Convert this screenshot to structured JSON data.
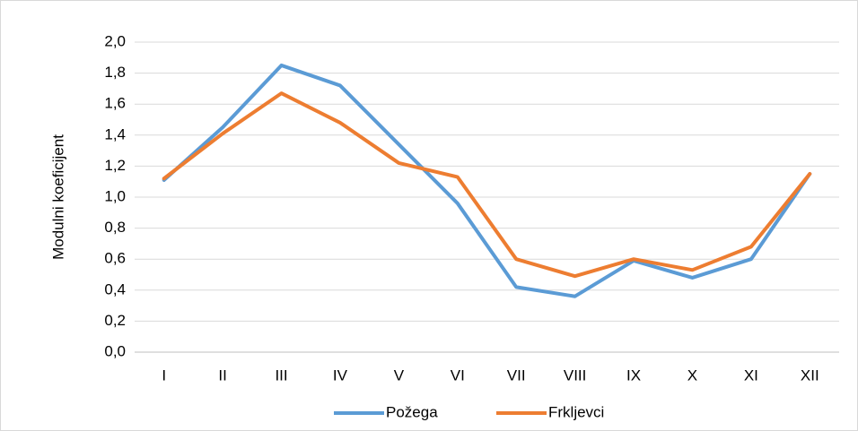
{
  "chart_data": {
    "type": "line",
    "y_label": "Modulni koeficijent",
    "categories": [
      "I",
      "II",
      "III",
      "IV",
      "V",
      "VI",
      "VII",
      "VIII",
      "IX",
      "X",
      "XI",
      "XII"
    ],
    "series": [
      {
        "name": "Požega",
        "color": "#5b9bd5",
        "values": [
          1.11,
          1.45,
          1.85,
          1.72,
          1.34,
          0.96,
          0.42,
          0.36,
          0.59,
          0.48,
          0.6,
          1.15
        ]
      },
      {
        "name": "Frkljevci",
        "color": "#ed7d31",
        "values": [
          1.12,
          1.41,
          1.67,
          1.48,
          1.22,
          1.13,
          0.6,
          0.49,
          0.6,
          0.53,
          0.68,
          1.15
        ]
      }
    ],
    "ylim": [
      0,
      2
    ],
    "yticks": [
      {
        "value": 0,
        "label": "0,0"
      },
      {
        "value": 0.2,
        "label": "0,2"
      },
      {
        "value": 0.4,
        "label": "0,4"
      },
      {
        "value": 0.6,
        "label": "0,6"
      },
      {
        "value": 0.8,
        "label": "0,8"
      },
      {
        "value": 1,
        "label": "1,0"
      },
      {
        "value": 1.2,
        "label": "1,2"
      },
      {
        "value": 1.4,
        "label": "1,4"
      },
      {
        "value": 1.6,
        "label": "1,6"
      },
      {
        "value": 1.8,
        "label": "1,8"
      },
      {
        "value": 2,
        "label": "2,0"
      }
    ],
    "grid": true,
    "legend": "bottom"
  }
}
